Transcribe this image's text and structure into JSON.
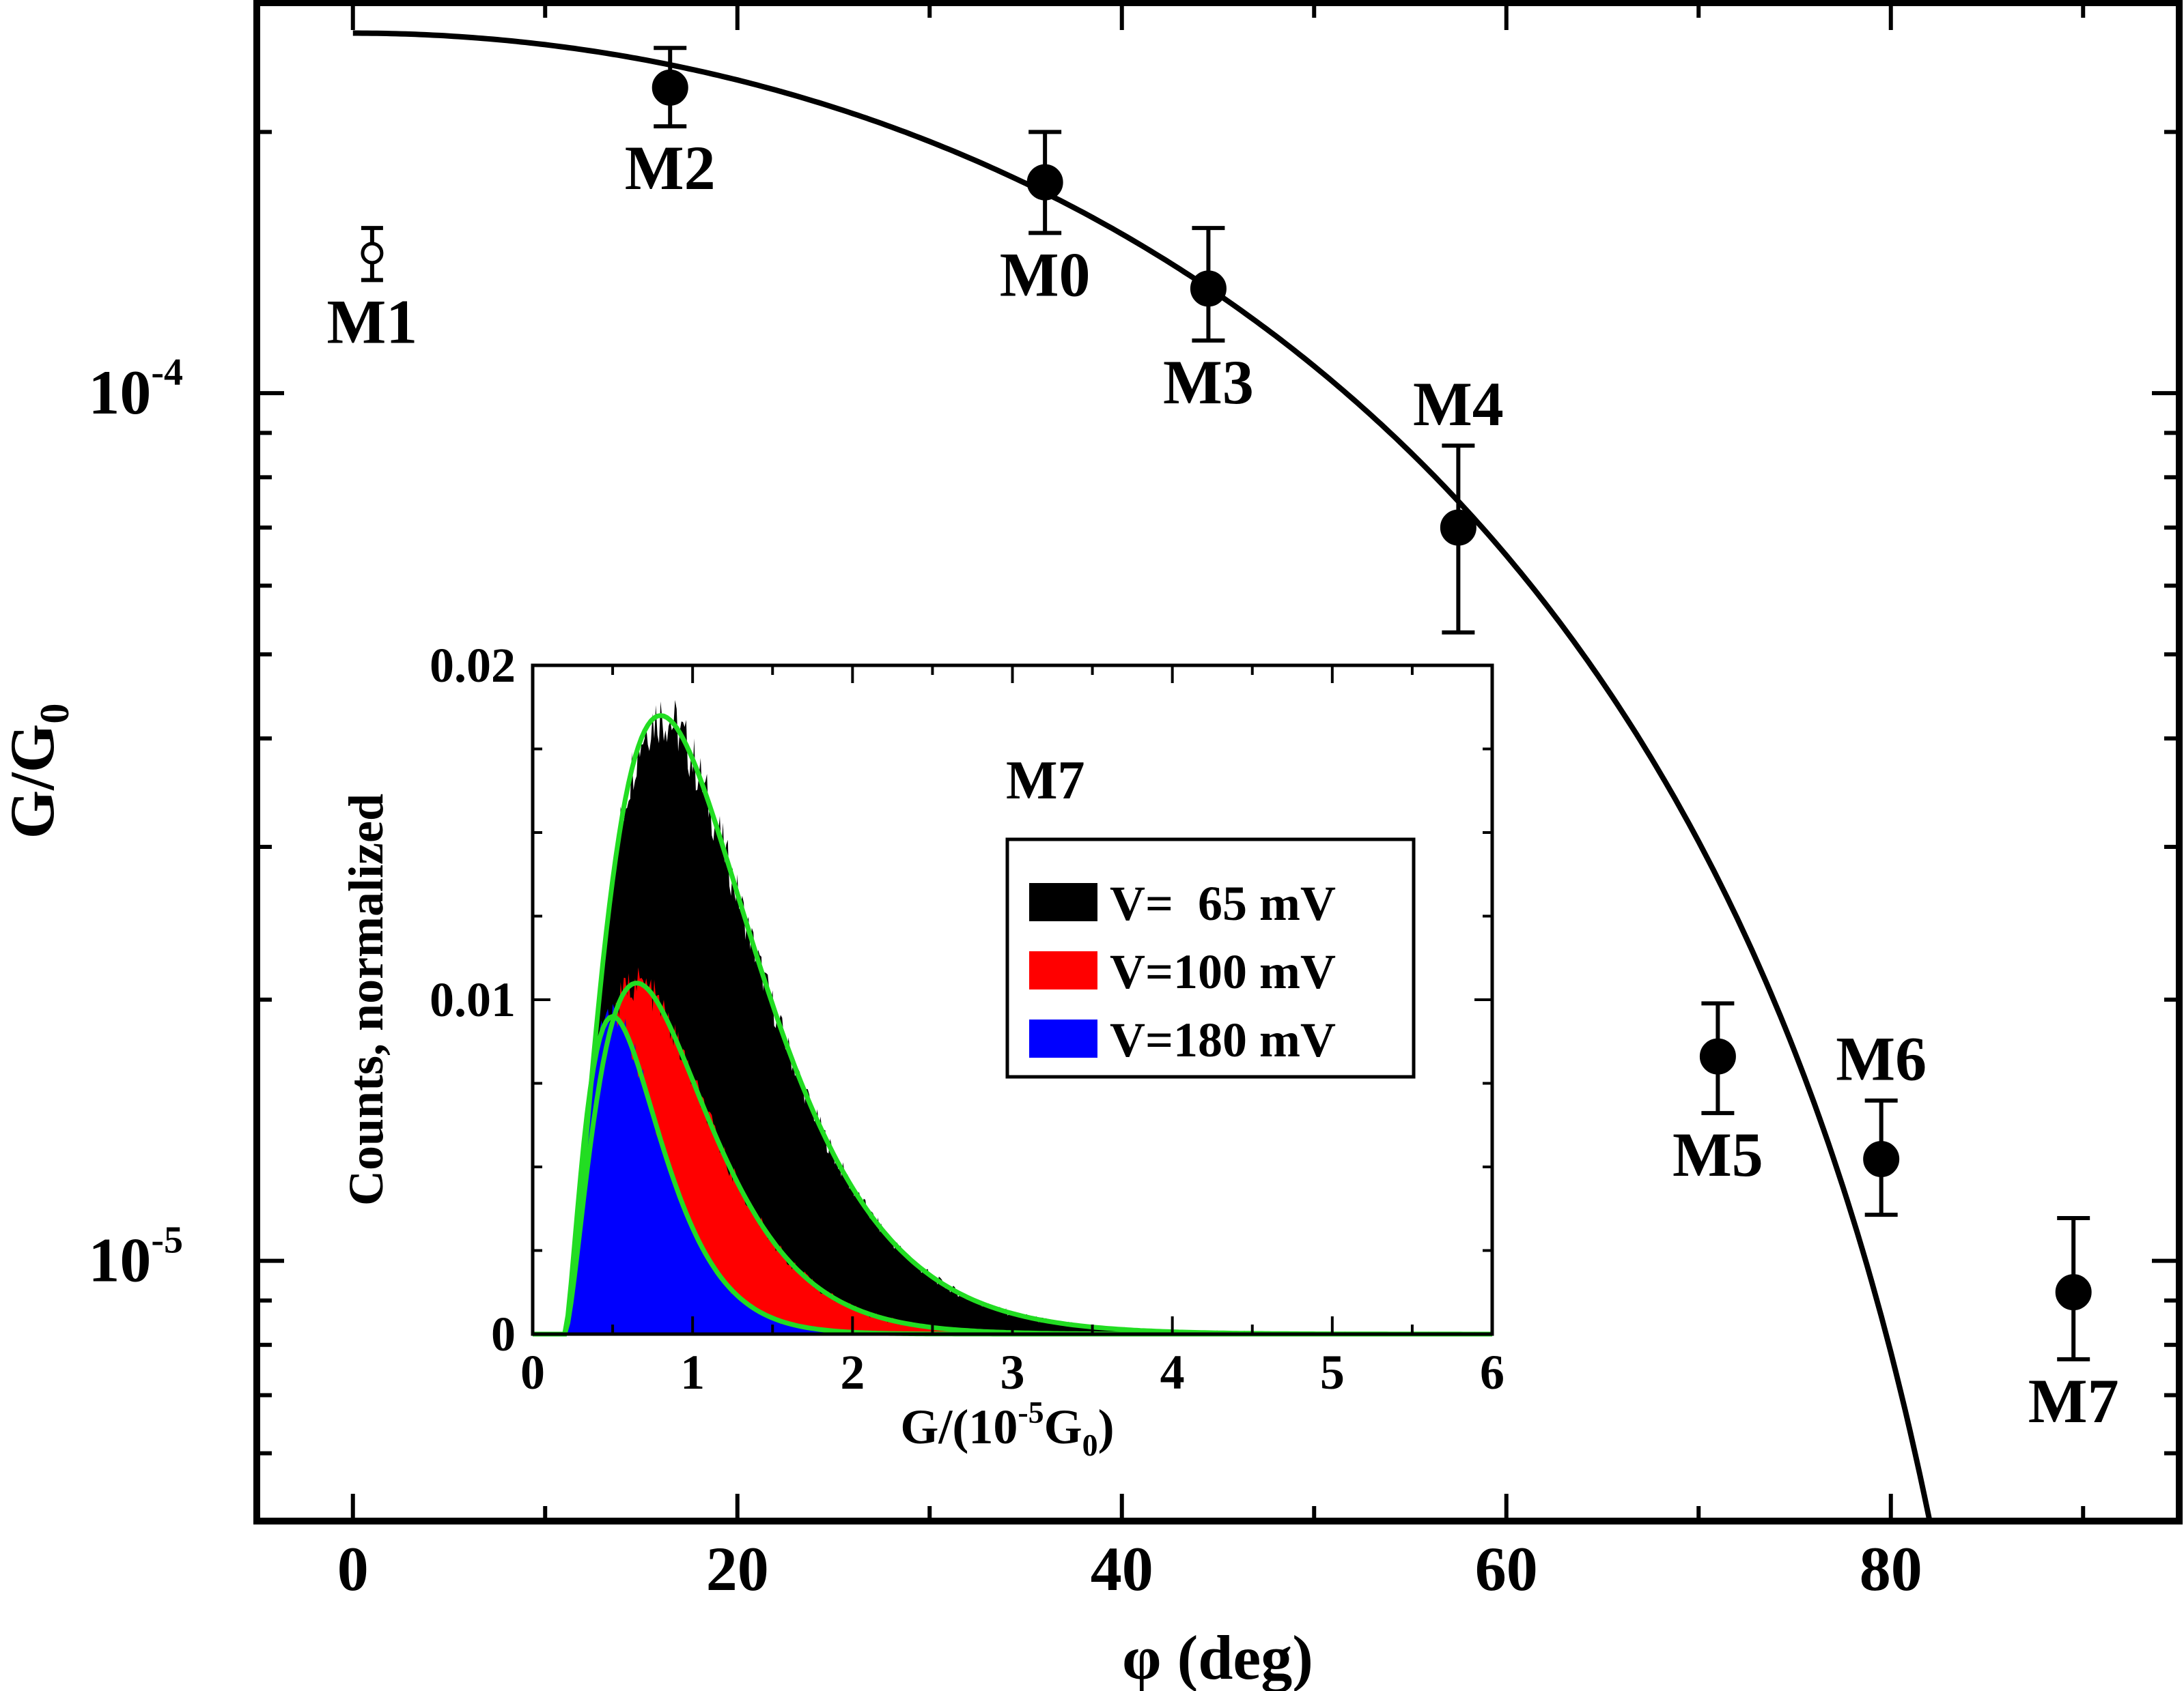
{
  "chart_data": [
    {
      "type": "scatter",
      "panel": "main",
      "title": "",
      "xlabel": "φ (deg)",
      "ylabel_main": "G/G",
      "ylabel_sub": "0",
      "xlim": [
        -5,
        95
      ],
      "ylim_log10": [
        -5.3,
        -3.55
      ],
      "x_ticks": [
        0,
        20,
        40,
        60,
        80
      ],
      "y_ticks": [
        {
          "value": 0.0001,
          "base": "10",
          "exp": "-4"
        },
        {
          "value": 1e-05,
          "base": "10",
          "exp": "-5"
        }
      ],
      "points": [
        {
          "name": "M0",
          "x": 36,
          "y": 0.000175,
          "err_lo": 0.000153,
          "err_hi": 0.0002,
          "filled": true,
          "label_pos": "below"
        },
        {
          "name": "M1",
          "x": 1,
          "y": 0.000145,
          "err_lo": 0.000135,
          "err_hi": 0.000155,
          "filled": false,
          "label_pos": "below"
        },
        {
          "name": "M2",
          "x": 16.5,
          "y": 0.000225,
          "err_lo": 0.000203,
          "err_hi": 0.00025,
          "filled": true,
          "label_pos": "below"
        },
        {
          "name": "M3",
          "x": 44.5,
          "y": 0.000132,
          "err_lo": 0.000115,
          "err_hi": 0.000155,
          "filled": true,
          "label_pos": "below"
        },
        {
          "name": "M4",
          "x": 57.5,
          "y": 7e-05,
          "err_lo": 5.3e-05,
          "err_hi": 8.7e-05,
          "filled": true,
          "label_pos": "above"
        },
        {
          "name": "M5",
          "x": 71,
          "y": 1.72e-05,
          "err_lo": 1.48e-05,
          "err_hi": 1.98e-05,
          "filled": true,
          "label_pos": "below"
        },
        {
          "name": "M6",
          "x": 79.5,
          "y": 1.31e-05,
          "err_lo": 1.13e-05,
          "err_hi": 1.53e-05,
          "filled": true,
          "label_pos": "above"
        },
        {
          "name": "M7",
          "x": 89.5,
          "y": 9.2e-06,
          "err_lo": 7.7e-06,
          "err_hi": 1.12e-05,
          "filled": true,
          "label_pos": "below"
        }
      ],
      "fit_curve": {
        "form": "G = 0.00026 * cos(φ)^2",
        "amplitude": 0.00026,
        "x_start": 0,
        "x_end": 82
      }
    },
    {
      "type": "area",
      "panel": "inset",
      "title": "M7",
      "xlabel_prefix": "G/(10",
      "xlabel_exp": "-5",
      "xlabel_mid": "G",
      "xlabel_sub": "0",
      "xlabel_suffix": ")",
      "ylabel": "Counts, normalized",
      "xlim": [
        0,
        6
      ],
      "ylim": [
        0,
        0.02
      ],
      "x_ticks": [
        0,
        1,
        2,
        3,
        4,
        5,
        6
      ],
      "y_ticks": [
        {
          "value": 0,
          "label": "0"
        },
        {
          "value": 0.01,
          "label": "0.01"
        },
        {
          "value": 0.02,
          "label": "0.02"
        }
      ],
      "series": [
        {
          "name": "V=  65 mV",
          "color": "#000000",
          "peak_x": 0.8,
          "peak_y": 0.0185,
          "onset_x": 0.2
        },
        {
          "name": "V=100 mV",
          "color": "#ff0000",
          "peak_x": 0.65,
          "peak_y": 0.0105,
          "onset_x": 0.2
        },
        {
          "name": "V=180 mV",
          "color": "#0000ff",
          "peak_x": 0.5,
          "peak_y": 0.0095,
          "onset_x": 0.2
        }
      ],
      "fit_color": "#22dd22",
      "legend_position": "upper-right"
    }
  ]
}
